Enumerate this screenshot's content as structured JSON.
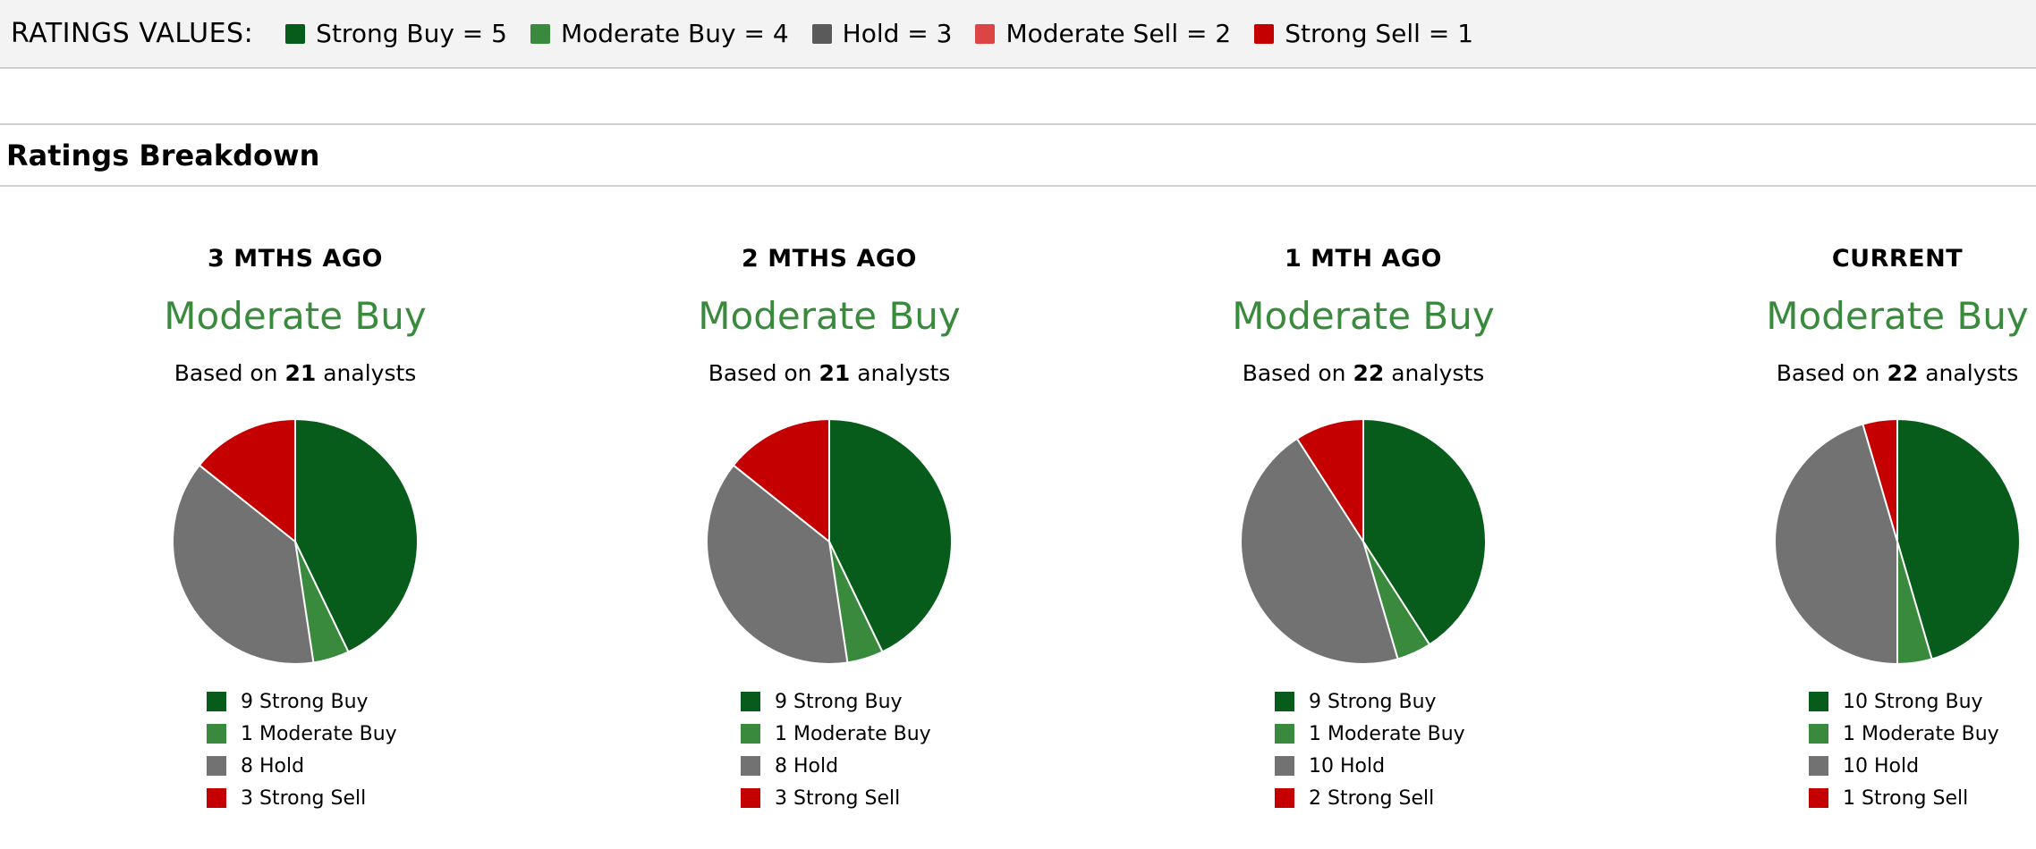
{
  "ratings_values": {
    "label": "RATINGS VALUES:",
    "items": [
      {
        "label": "Strong Buy = 5",
        "color": "#085c1b"
      },
      {
        "label": "Moderate Buy = 4",
        "color": "#3a8a3e"
      },
      {
        "label": "Hold = 3",
        "color": "#5a5a5a"
      },
      {
        "label": "Moderate Sell = 2",
        "color": "#dd4444"
      },
      {
        "label": "Strong Sell = 1",
        "color": "#c40000"
      }
    ]
  },
  "section_title": "Ratings Breakdown",
  "colors": {
    "consensus": "#3a8a3e",
    "strong_buy": "#085c1b",
    "moderate_buy": "#3a8a3e",
    "hold": "#727272",
    "strong_sell": "#c40000"
  },
  "chart_data": [
    {
      "type": "pie",
      "title": "3 MTHS AGO",
      "consensus": "Moderate Buy",
      "based_prefix": "Based on",
      "analysts": "21",
      "based_suffix": "analysts",
      "slices": [
        {
          "label": "Strong Buy",
          "value": 9,
          "legend": "9 Strong Buy",
          "color": "#085c1b"
        },
        {
          "label": "Moderate Buy",
          "value": 1,
          "legend": "1 Moderate Buy",
          "color": "#3a8a3e"
        },
        {
          "label": "Hold",
          "value": 8,
          "legend": "8 Hold",
          "color": "#727272"
        },
        {
          "label": "Strong Sell",
          "value": 3,
          "legend": "3 Strong Sell",
          "color": "#c40000"
        }
      ]
    },
    {
      "type": "pie",
      "title": "2 MTHS AGO",
      "consensus": "Moderate Buy",
      "based_prefix": "Based on",
      "analysts": "21",
      "based_suffix": "analysts",
      "slices": [
        {
          "label": "Strong Buy",
          "value": 9,
          "legend": "9 Strong Buy",
          "color": "#085c1b"
        },
        {
          "label": "Moderate Buy",
          "value": 1,
          "legend": "1 Moderate Buy",
          "color": "#3a8a3e"
        },
        {
          "label": "Hold",
          "value": 8,
          "legend": "8 Hold",
          "color": "#727272"
        },
        {
          "label": "Strong Sell",
          "value": 3,
          "legend": "3 Strong Sell",
          "color": "#c40000"
        }
      ]
    },
    {
      "type": "pie",
      "title": "1 MTH AGO",
      "consensus": "Moderate Buy",
      "based_prefix": "Based on",
      "analysts": "22",
      "based_suffix": "analysts",
      "slices": [
        {
          "label": "Strong Buy",
          "value": 9,
          "legend": "9 Strong Buy",
          "color": "#085c1b"
        },
        {
          "label": "Moderate Buy",
          "value": 1,
          "legend": "1 Moderate Buy",
          "color": "#3a8a3e"
        },
        {
          "label": "Hold",
          "value": 10,
          "legend": "10 Hold",
          "color": "#727272"
        },
        {
          "label": "Strong Sell",
          "value": 2,
          "legend": "2 Strong Sell",
          "color": "#c40000"
        }
      ]
    },
    {
      "type": "pie",
      "title": "CURRENT",
      "consensus": "Moderate Buy",
      "based_prefix": "Based on",
      "analysts": "22",
      "based_suffix": "analysts",
      "slices": [
        {
          "label": "Strong Buy",
          "value": 10,
          "legend": "10 Strong Buy",
          "color": "#085c1b"
        },
        {
          "label": "Moderate Buy",
          "value": 1,
          "legend": "1 Moderate Buy",
          "color": "#3a8a3e"
        },
        {
          "label": "Hold",
          "value": 10,
          "legend": "10 Hold",
          "color": "#727272"
        },
        {
          "label": "Strong Sell",
          "value": 1,
          "legend": "1 Strong Sell",
          "color": "#c40000"
        }
      ]
    }
  ]
}
